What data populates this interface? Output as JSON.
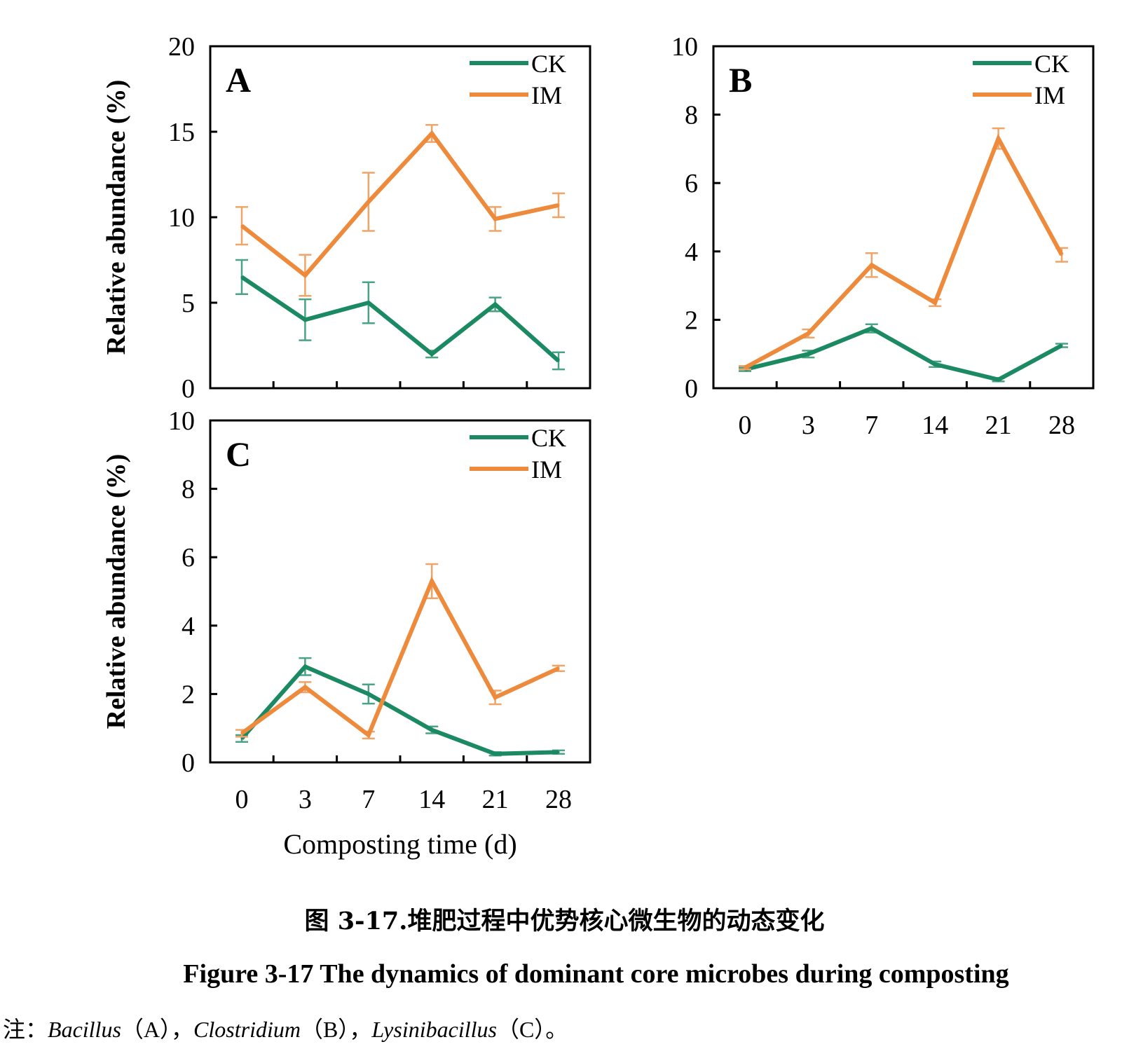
{
  "colors": {
    "CK": "#1b8a63",
    "IM": "#ee8a3c",
    "CK_err": "#4aa385",
    "IM_err": "#f0a468"
  },
  "chart_data": [
    {
      "type": "line",
      "panel_label": "A",
      "categories": [
        "0",
        "3",
        "7",
        "14",
        "21",
        "28"
      ],
      "series": [
        {
          "name": "CK",
          "values": [
            6.5,
            4.0,
            5.0,
            2.0,
            4.9,
            1.6
          ],
          "errors": [
            1.0,
            1.2,
            1.2,
            0.2,
            0.4,
            0.5
          ]
        },
        {
          "name": "IM",
          "values": [
            9.5,
            6.6,
            10.9,
            14.9,
            9.9,
            10.7
          ],
          "errors": [
            1.1,
            1.2,
            1.7,
            0.5,
            0.7,
            0.7
          ]
        }
      ],
      "ylabel": "Relative abundance (%)",
      "xlabel": "",
      "ylim": [
        0,
        20
      ],
      "yticks": [
        "0",
        "5",
        "10",
        "15",
        "20"
      ],
      "legend_position": "top-right",
      "show_x_tick_labels": false
    },
    {
      "type": "line",
      "panel_label": "B",
      "categories": [
        "0",
        "3",
        "7",
        "14",
        "21",
        "28"
      ],
      "series": [
        {
          "name": "CK",
          "values": [
            0.55,
            1.0,
            1.75,
            0.7,
            0.25,
            1.25
          ],
          "errors": [
            0.05,
            0.1,
            0.12,
            0.08,
            0.05,
            0.05
          ]
        },
        {
          "name": "IM",
          "values": [
            0.6,
            1.6,
            3.6,
            2.5,
            7.3,
            3.9
          ],
          "errors": [
            0.05,
            0.12,
            0.35,
            0.1,
            0.3,
            0.2
          ]
        }
      ],
      "ylabel": "",
      "xlabel": "",
      "ylim": [
        0,
        10
      ],
      "yticks": [
        "0",
        "2",
        "4",
        "6",
        "8",
        "10"
      ],
      "legend_position": "top-right",
      "show_x_tick_labels": true
    },
    {
      "type": "line",
      "panel_label": "C",
      "categories": [
        "0",
        "3",
        "7",
        "14",
        "21",
        "28"
      ],
      "series": [
        {
          "name": "CK",
          "values": [
            0.7,
            2.8,
            2.0,
            0.95,
            0.25,
            0.3
          ],
          "errors": [
            0.1,
            0.25,
            0.28,
            0.1,
            0.05,
            0.05
          ]
        },
        {
          "name": "IM",
          "values": [
            0.85,
            2.2,
            0.8,
            5.3,
            1.9,
            2.75
          ],
          "errors": [
            0.1,
            0.15,
            0.1,
            0.5,
            0.2,
            0.08
          ]
        }
      ],
      "ylabel": "Relative abundance (%)",
      "xlabel": "Composting time (d)",
      "ylim": [
        0,
        10
      ],
      "yticks": [
        "0",
        "2",
        "4",
        "6",
        "8",
        "10"
      ],
      "legend_position": "top-right",
      "show_x_tick_labels": true
    }
  ],
  "caption": {
    "cn": "图 3-17.堆肥过程中优势核心微生物的动态变化",
    "en": "Figure 3-17 The dynamics of dominant core microbes during composting"
  },
  "note": {
    "prefix": "注：",
    "taxa": [
      {
        "name": "Bacillus",
        "panel": "（A）"
      },
      {
        "name": "Clostridium",
        "panel": "（B）"
      },
      {
        "name": "Lysinibacillus",
        "panel": "（C）"
      }
    ],
    "separator": "，",
    "end": "。"
  }
}
